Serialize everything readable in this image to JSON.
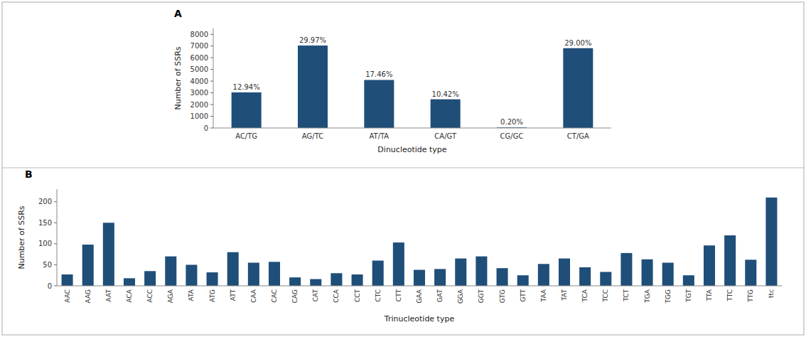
{
  "chart_data": [
    {
      "type": "bar",
      "title": "A",
      "categories": [
        "AC/TG",
        "AG/TC",
        "AT/TA",
        "CA/GT",
        "CG/GC",
        "CT/GA"
      ],
      "values": [
        3040,
        7040,
        4100,
        2450,
        47,
        6815
      ],
      "percentages": [
        "12.94%",
        "29.97%",
        "17.46%",
        "10.42%",
        "0.20%",
        "29.00%"
      ],
      "color": "#1F4E79",
      "x_label": "Dinucleotide type",
      "y_label": "Number of SSRs",
      "ylim": [
        0,
        8500
      ],
      "yticks": [
        0,
        1000,
        2000,
        3000,
        4000,
        5000,
        6000,
        7000,
        8000
      ],
      "grid": false
    },
    {
      "type": "bar",
      "title": "B",
      "categories": [
        "AAC",
        "AAG",
        "AAT",
        "ACA",
        "ACC",
        "AGA",
        "ATA",
        "ATG",
        "ATT",
        "CAA",
        "CAC",
        "CAG",
        "CAT",
        "CCA",
        "CCT",
        "CTC",
        "CTT",
        "GAA",
        "GAT",
        "GGA",
        "GGT",
        "GTG",
        "GTT",
        "TAA",
        "TAT",
        "TCA",
        "TCC",
        "TCT",
        "TGA",
        "TGG",
        "TGT",
        "TTA",
        "TTC",
        "TTG",
        "ttc"
      ],
      "values": [
        27,
        98,
        150,
        18,
        35,
        70,
        50,
        32,
        80,
        55,
        57,
        20,
        16,
        30,
        27,
        60,
        103,
        38,
        40,
        65,
        70,
        42,
        25,
        52,
        65,
        44,
        33,
        78,
        63,
        55,
        25,
        96,
        120,
        62,
        210
      ],
      "color": "#1F4E79",
      "x_label": "Trinucleotide type",
      "y_label": "Number of SSRs",
      "ylim": [
        0,
        230
      ],
      "yticks": [
        0,
        50,
        100,
        150,
        200
      ],
      "grid": false
    }
  ]
}
